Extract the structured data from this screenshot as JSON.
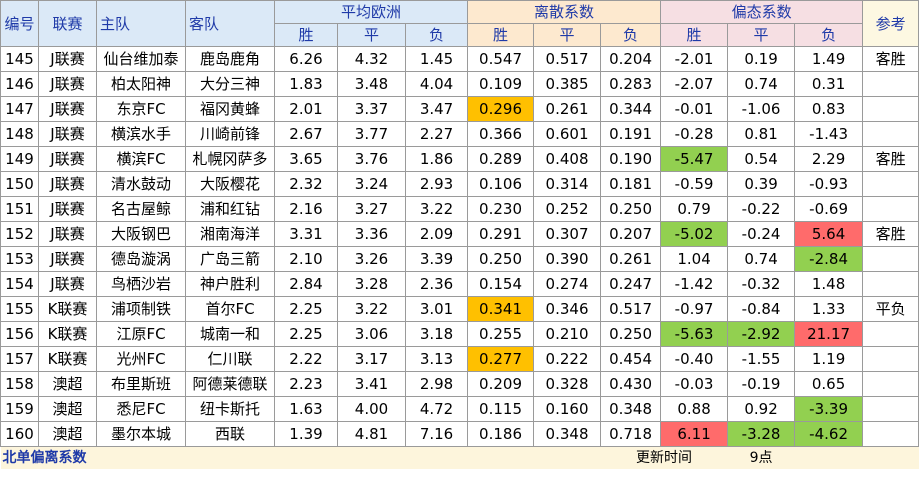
{
  "header": {
    "id": "编号",
    "league": "联赛",
    "home": "主队",
    "away": "客队",
    "euro_group": "平均欧洲",
    "disp_group": "离散系数",
    "bias_group": "偏态系数",
    "ref": "参考",
    "win": "胜",
    "draw": "平",
    "lose": "负"
  },
  "rows": [
    {
      "id": "145",
      "league": "J联赛",
      "home": "仙台维加泰",
      "away": "鹿岛鹿角",
      "e": [
        "6.26",
        "4.32",
        "1.45"
      ],
      "d": [
        "0.547",
        "0.517",
        "0.204"
      ],
      "b": [
        "-2.01",
        "0.19",
        "1.49"
      ],
      "ref": "客胜"
    },
    {
      "id": "146",
      "league": "J联赛",
      "home": "柏太阳神",
      "away": "大分三神",
      "e": [
        "1.83",
        "3.48",
        "4.04"
      ],
      "d": [
        "0.109",
        "0.385",
        "0.283"
      ],
      "b": [
        "-2.07",
        "0.74",
        "0.31"
      ],
      "ref": ""
    },
    {
      "id": "147",
      "league": "J联赛",
      "home": "东京FC",
      "away": "福冈黄蜂",
      "e": [
        "2.01",
        "3.37",
        "3.47"
      ],
      "d": [
        "0.296",
        "0.261",
        "0.344"
      ],
      "b": [
        "-0.01",
        "-1.06",
        "0.83"
      ],
      "ref": ""
    },
    {
      "id": "148",
      "league": "J联赛",
      "home": "横滨水手",
      "away": "川崎前锋",
      "e": [
        "2.67",
        "3.77",
        "2.27"
      ],
      "d": [
        "0.366",
        "0.601",
        "0.191"
      ],
      "b": [
        "-0.28",
        "0.81",
        "-1.43"
      ],
      "ref": ""
    },
    {
      "id": "149",
      "league": "J联赛",
      "home": "横滨FC",
      "away": "札幌冈萨多",
      "e": [
        "3.65",
        "3.76",
        "1.86"
      ],
      "d": [
        "0.289",
        "0.408",
        "0.190"
      ],
      "b": [
        "-5.47",
        "0.54",
        "2.29"
      ],
      "ref": "客胜"
    },
    {
      "id": "150",
      "league": "J联赛",
      "home": "清水鼓动",
      "away": "大阪樱花",
      "e": [
        "2.32",
        "3.24",
        "2.93"
      ],
      "d": [
        "0.106",
        "0.314",
        "0.181"
      ],
      "b": [
        "-0.59",
        "0.39",
        "-0.93"
      ],
      "ref": ""
    },
    {
      "id": "151",
      "league": "J联赛",
      "home": "名古屋鲸",
      "away": "浦和红钻",
      "e": [
        "2.16",
        "3.27",
        "3.22"
      ],
      "d": [
        "0.230",
        "0.252",
        "0.250"
      ],
      "b": [
        "0.79",
        "-0.22",
        "-0.69"
      ],
      "ref": ""
    },
    {
      "id": "152",
      "league": "J联赛",
      "home": "大阪钢巴",
      "away": "湘南海洋",
      "e": [
        "3.31",
        "3.36",
        "2.09"
      ],
      "d": [
        "0.291",
        "0.307",
        "0.207"
      ],
      "b": [
        "-5.02",
        "-0.24",
        "5.64"
      ],
      "ref": "客胜"
    },
    {
      "id": "153",
      "league": "J联赛",
      "home": "德岛漩涡",
      "away": "广岛三箭",
      "e": [
        "2.10",
        "3.26",
        "3.39"
      ],
      "d": [
        "0.250",
        "0.390",
        "0.261"
      ],
      "b": [
        "1.04",
        "0.74",
        "-2.84"
      ],
      "ref": ""
    },
    {
      "id": "154",
      "league": "J联赛",
      "home": "鸟栖沙岩",
      "away": "神户胜利",
      "e": [
        "2.84",
        "3.28",
        "2.36"
      ],
      "d": [
        "0.154",
        "0.274",
        "0.247"
      ],
      "b": [
        "-1.42",
        "-0.32",
        "1.48"
      ],
      "ref": ""
    },
    {
      "id": "155",
      "league": "K联赛",
      "home": "浦项制铁",
      "away": "首尔FC",
      "e": [
        "2.25",
        "3.22",
        "3.01"
      ],
      "d": [
        "0.341",
        "0.346",
        "0.517"
      ],
      "b": [
        "-0.97",
        "-0.84",
        "1.33"
      ],
      "ref": "平负"
    },
    {
      "id": "156",
      "league": "K联赛",
      "home": "江原FC",
      "away": "城南一和",
      "e": [
        "2.25",
        "3.06",
        "3.18"
      ],
      "d": [
        "0.255",
        "0.210",
        "0.250"
      ],
      "b": [
        "-5.63",
        "-2.92",
        "21.17"
      ],
      "ref": ""
    },
    {
      "id": "157",
      "league": "K联赛",
      "home": "光州FC",
      "away": "仁川联",
      "e": [
        "2.22",
        "3.17",
        "3.13"
      ],
      "d": [
        "0.277",
        "0.222",
        "0.454"
      ],
      "b": [
        "-0.40",
        "-1.55",
        "1.19"
      ],
      "ref": ""
    },
    {
      "id": "158",
      "league": "澳超",
      "home": "布里斯班",
      "away": "阿德莱德联",
      "e": [
        "2.23",
        "3.41",
        "2.98"
      ],
      "d": [
        "0.209",
        "0.328",
        "0.430"
      ],
      "b": [
        "-0.03",
        "-0.19",
        "0.65"
      ],
      "ref": ""
    },
    {
      "id": "159",
      "league": "澳超",
      "home": "悉尼FC",
      "away": "纽卡斯托",
      "e": [
        "1.63",
        "4.00",
        "4.72"
      ],
      "d": [
        "0.115",
        "0.160",
        "0.348"
      ],
      "b": [
        "0.88",
        "0.92",
        "-3.39"
      ],
      "ref": ""
    },
    {
      "id": "160",
      "league": "澳超",
      "home": "墨尔本城",
      "away": "西联",
      "e": [
        "1.39",
        "4.81",
        "7.16"
      ],
      "d": [
        "0.186",
        "0.348",
        "0.718"
      ],
      "b": [
        "6.11",
        "-3.28",
        "-4.62"
      ],
      "ref": ""
    }
  ],
  "highlights": {
    "orange": "#ffc000",
    "green": "#92d050",
    "red": "#ff6b6b",
    "cells": [
      {
        "row": 2,
        "col": "d0",
        "color": "orange"
      },
      {
        "row": 4,
        "col": "b0",
        "color": "green"
      },
      {
        "row": 7,
        "col": "b0",
        "color": "green"
      },
      {
        "row": 7,
        "col": "b2",
        "color": "red"
      },
      {
        "row": 8,
        "col": "b2",
        "color": "green"
      },
      {
        "row": 10,
        "col": "d0",
        "color": "orange"
      },
      {
        "row": 11,
        "col": "b0",
        "color": "green"
      },
      {
        "row": 11,
        "col": "b1",
        "color": "green"
      },
      {
        "row": 11,
        "col": "b2",
        "color": "red"
      },
      {
        "row": 12,
        "col": "d0",
        "color": "orange"
      },
      {
        "row": 14,
        "col": "b2",
        "color": "green"
      },
      {
        "row": 15,
        "col": "b0",
        "color": "red"
      },
      {
        "row": 15,
        "col": "b1",
        "color": "green"
      },
      {
        "row": 15,
        "col": "b2",
        "color": "green"
      }
    ]
  },
  "footer": {
    "title": "北单偏离系数",
    "update_label": "更新时间",
    "update_value": "9点"
  }
}
